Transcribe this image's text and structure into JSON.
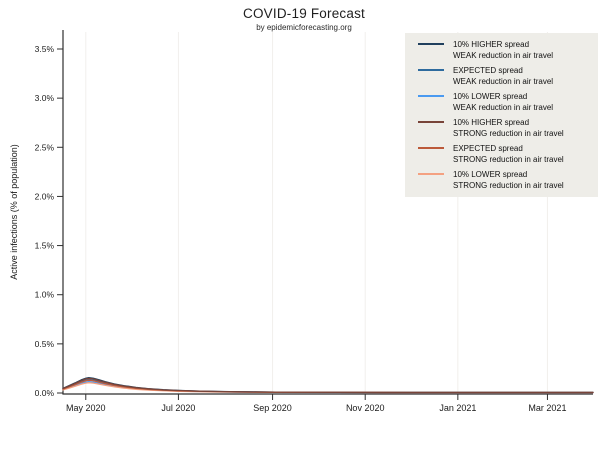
{
  "page": {
    "title": "COVID-19 Forecast",
    "subtitle": "by epidemicforecasting.org"
  },
  "chart_data": {
    "type": "line",
    "title": "COVID-19 Forecast",
    "subtitle": "by epidemicforecasting.org",
    "xlabel": "",
    "ylabel": "Active infections (% of population)",
    "x_unit": "days since 2020-04-16",
    "x_range_days": [
      0,
      349
    ],
    "ylim_percent": [
      0,
      3.7
    ],
    "grid": "vertical-only",
    "legend_position": "top-right",
    "y_ticks": [
      {
        "value": 0.0,
        "label": "0.0%"
      },
      {
        "value": 0.5,
        "label": "0.5%"
      },
      {
        "value": 1.0,
        "label": "1.0%"
      },
      {
        "value": 1.5,
        "label": "1.5%"
      },
      {
        "value": 2.0,
        "label": "2.0%"
      },
      {
        "value": 2.5,
        "label": "2.5%"
      },
      {
        "value": 3.0,
        "label": "3.0%"
      },
      {
        "value": 3.5,
        "label": "3.5%"
      }
    ],
    "x_ticks": [
      {
        "day": 15,
        "label": "May 2020"
      },
      {
        "day": 76,
        "label": "Jul 2020"
      },
      {
        "day": 138,
        "label": "Sep 2020"
      },
      {
        "day": 199,
        "label": "Nov 2020"
      },
      {
        "day": 260,
        "label": "Jan 2021"
      },
      {
        "day": 319,
        "label": "Mar 2021"
      }
    ],
    "x_days": [
      0,
      4,
      8,
      12,
      15,
      17,
      20,
      24,
      28,
      34,
      40,
      48,
      56,
      66,
      76,
      90,
      110,
      140,
      180,
      230,
      280,
      349
    ],
    "series": [
      {
        "id": "weak-lower",
        "name": "10% LOWER spread, WEAK reduction in air travel",
        "color": "#4a9af0",
        "values": [
          0.036,
          0.056,
          0.076,
          0.098,
          0.111,
          0.116,
          0.111,
          0.098,
          0.085,
          0.068,
          0.056,
          0.042,
          0.033,
          0.025,
          0.019,
          0.014,
          0.01,
          0.007,
          0.005,
          0.004,
          0.004,
          0.004
        ]
      },
      {
        "id": "weak-expected",
        "name": "EXPECTED spread, WEAK reduction in air travel",
        "color": "#2e6b9e",
        "values": [
          0.042,
          0.066,
          0.091,
          0.117,
          0.132,
          0.138,
          0.132,
          0.117,
          0.101,
          0.081,
          0.066,
          0.05,
          0.04,
          0.03,
          0.023,
          0.017,
          0.011,
          0.008,
          0.006,
          0.005,
          0.005,
          0.005
        ]
      },
      {
        "id": "weak-higher",
        "name": "10% HIGHER spread, WEAK reduction in air travel",
        "color": "#21405e",
        "values": [
          0.048,
          0.075,
          0.103,
          0.133,
          0.15,
          0.157,
          0.15,
          0.133,
          0.115,
          0.092,
          0.075,
          0.057,
          0.045,
          0.034,
          0.026,
          0.019,
          0.013,
          0.009,
          0.007,
          0.006,
          0.006,
          0.006
        ]
      },
      {
        "id": "strong-lower",
        "name": "10% LOWER spread, STRONG reduction in air travel",
        "color": "#f4a181",
        "values": [
          0.032,
          0.05,
          0.069,
          0.089,
          0.101,
          0.105,
          0.101,
          0.089,
          0.077,
          0.062,
          0.05,
          0.038,
          0.03,
          0.023,
          0.017,
          0.013,
          0.009,
          0.006,
          0.005,
          0.004,
          0.004,
          0.004
        ]
      },
      {
        "id": "strong-expected",
        "name": "EXPECTED spread, STRONG reduction in air travel",
        "color": "#bc5a3a",
        "values": [
          0.04,
          0.062,
          0.085,
          0.11,
          0.125,
          0.13,
          0.125,
          0.11,
          0.095,
          0.076,
          0.062,
          0.047,
          0.037,
          0.028,
          0.022,
          0.016,
          0.011,
          0.007,
          0.006,
          0.005,
          0.005,
          0.005
        ]
      },
      {
        "id": "strong-higher",
        "name": "10% HIGHER spread, STRONG reduction in air travel",
        "color": "#784439",
        "values": [
          0.046,
          0.071,
          0.098,
          0.126,
          0.143,
          0.149,
          0.143,
          0.126,
          0.109,
          0.087,
          0.071,
          0.054,
          0.043,
          0.032,
          0.025,
          0.018,
          0.012,
          0.009,
          0.007,
          0.006,
          0.006,
          0.006
        ]
      }
    ]
  },
  "legend": {
    "entries": [
      {
        "line1": "10% HIGHER spread",
        "line2": "WEAK reduction in air travel",
        "color": "#21405e"
      },
      {
        "line1": "EXPECTED spread",
        "line2": "WEAK reduction in air travel",
        "color": "#2e6b9e"
      },
      {
        "line1": "10% LOWER spread",
        "line2": "WEAK reduction in air travel",
        "color": "#4a9af0"
      },
      {
        "line1": "10% HIGHER spread",
        "line2": "STRONG reduction in air travel",
        "color": "#784439"
      },
      {
        "line1": "EXPECTED spread",
        "line2": "STRONG reduction in air travel",
        "color": "#bc5a3a"
      },
      {
        "line1": "10% LOWER spread",
        "line2": "STRONG reduction in air travel",
        "color": "#f4a181"
      }
    ]
  }
}
